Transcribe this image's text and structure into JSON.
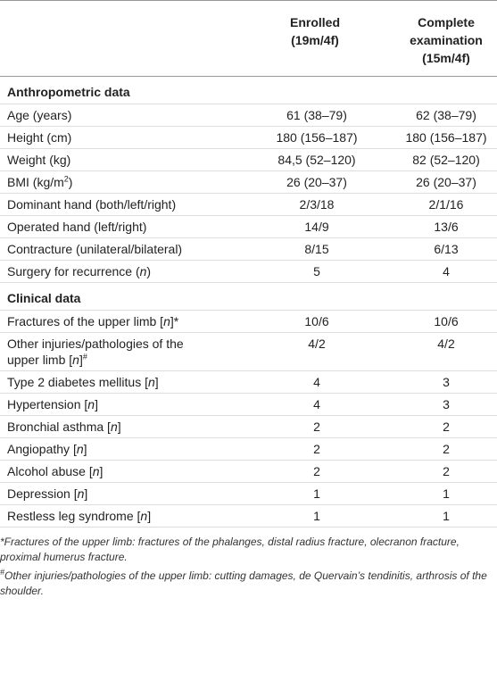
{
  "table": {
    "columns": [
      {
        "title": "Enrolled",
        "subtitle": "(19m/4f)"
      },
      {
        "title": "Complete examination",
        "subtitle": "(15m/4f)"
      }
    ],
    "sections": [
      {
        "title": "Anthropometric data",
        "rows": [
          {
            "label": [
              "Age (years)"
            ],
            "values": [
              "61 (38–79)",
              "62 (38–79)"
            ]
          },
          {
            "label": [
              "Height (cm)"
            ],
            "values": [
              "180 (156–187)",
              "180 (156–187)"
            ]
          },
          {
            "label": [
              "Weight (kg)"
            ],
            "values": [
              "84,5 (52–120)",
              "82 (52–120)"
            ]
          },
          {
            "label": [
              "BMI (kg/m",
              {
                "text": "2",
                "style": "sup"
              },
              ")"
            ],
            "values": [
              "26 (20–37)",
              "26 (20–37)"
            ]
          },
          {
            "label": [
              "Dominant hand (both/left/right)"
            ],
            "values": [
              "2/3/18",
              "2/1/16"
            ]
          },
          {
            "label": [
              "Operated hand (left/right)"
            ],
            "values": [
              "14/9",
              "13/6"
            ]
          },
          {
            "label": [
              "Contracture (unilateral/bilateral)"
            ],
            "values": [
              "8/15",
              "6/13"
            ]
          },
          {
            "label": [
              "Surgery for recurrence (",
              {
                "text": "n",
                "style": "italic"
              },
              ")"
            ],
            "values": [
              "5",
              "4"
            ]
          }
        ]
      },
      {
        "title": "Clinical data",
        "rows": [
          {
            "label": [
              "Fractures of the upper limb [",
              {
                "text": "n",
                "style": "italic"
              },
              "]*"
            ],
            "values": [
              "10/6",
              "10/6"
            ]
          },
          {
            "label": [
              "Other injuries/pathologies of the upper limb [",
              {
                "text": "n",
                "style": "italic"
              },
              "]",
              {
                "text": "#",
                "style": "sup"
              }
            ],
            "values": [
              "4/2",
              "4/2"
            ]
          },
          {
            "label": [
              "Type 2 diabetes mellitus [",
              {
                "text": "n",
                "style": "italic"
              },
              "]"
            ],
            "values": [
              "4",
              "3"
            ]
          },
          {
            "label": [
              "Hypertension [",
              {
                "text": "n",
                "style": "italic"
              },
              "]"
            ],
            "values": [
              "4",
              "3"
            ]
          },
          {
            "label": [
              "Bronchial asthma [",
              {
                "text": "n",
                "style": "italic"
              },
              "]"
            ],
            "values": [
              "2",
              "2"
            ]
          },
          {
            "label": [
              "Angiopathy [",
              {
                "text": "n",
                "style": "italic"
              },
              "]"
            ],
            "values": [
              "2",
              "2"
            ]
          },
          {
            "label": [
              "Alcohol abuse [",
              {
                "text": "n",
                "style": "italic"
              },
              "]"
            ],
            "values": [
              "2",
              "2"
            ]
          },
          {
            "label": [
              "Depression [",
              {
                "text": "n",
                "style": "italic"
              },
              "]"
            ],
            "values": [
              "1",
              "1"
            ]
          },
          {
            "label": [
              "Restless leg syndrome [",
              {
                "text": "n",
                "style": "italic"
              },
              "]"
            ],
            "values": [
              "1",
              "1"
            ]
          }
        ]
      }
    ]
  },
  "footnotes": [
    [
      "*Fractures of the upper limb: fractures of the phalanges, distal radius fracture, olecranon fracture, proximal humerus fracture."
    ],
    [
      {
        "text": "#",
        "style": "sup"
      },
      "Other injuries/pathologies of the upper limb: cutting damages, de Quervain’s tendinitis, arthrosis of the shoulder."
    ]
  ]
}
